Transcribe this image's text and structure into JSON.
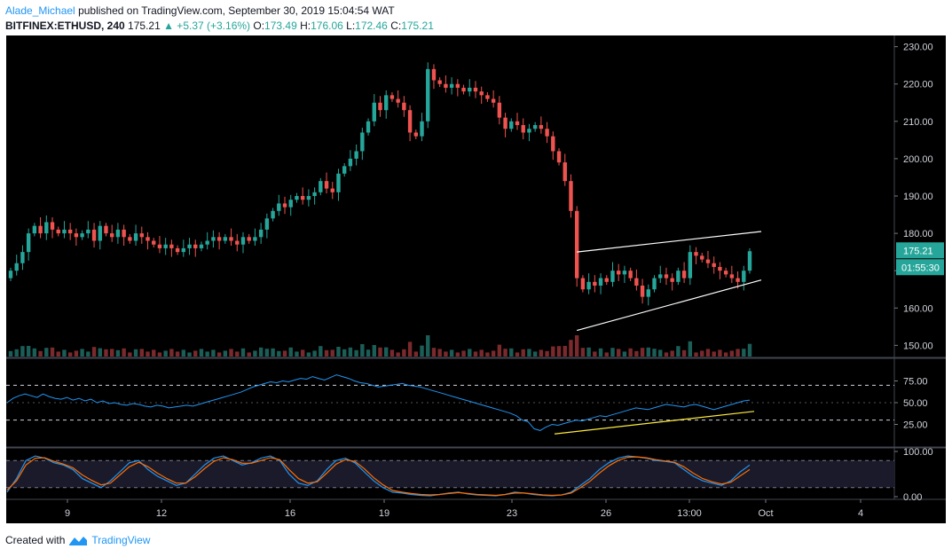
{
  "header": {
    "author": "Alade_Michael",
    "published_text": "published on TradingView.com, September 30, 2019 15:04:54 WAT",
    "symbol": "BITFINEX:ETHUSD, 240",
    "last": "175.21",
    "change": "▲ +5.37 (+3.16%)",
    "o_label": "O:",
    "o_value": "173.49",
    "h_label": "H:",
    "h_value": "176.06",
    "l_label": "L:",
    "l_value": "172.46",
    "c_label": "C:",
    "c_value": "175.21"
  },
  "price_badge": "175.21",
  "timer_badge": "01:55:30",
  "footer": {
    "created_with": "Created with",
    "brand": "TradingView"
  },
  "colors": {
    "up": "#26a69a",
    "down": "#ef5350",
    "rsi": "#2196f3",
    "stoch_k": "#2196f3",
    "stoch_d": "#ff6d00",
    "trend": "#ffffff",
    "rsi_trend": "#ffeb3b"
  },
  "chart_data": [
    {
      "type": "candlestick",
      "yticks": [
        "230.00",
        "220.00",
        "210.00",
        "200.00",
        "190.00",
        "180.00",
        "170.00",
        "160.00",
        "150.00"
      ],
      "ylim": [
        147,
        233
      ],
      "xticks": [
        "9",
        "12",
        "16",
        "19",
        "23",
        "26",
        "13:00",
        "Oct",
        "4"
      ],
      "closes": [
        170,
        172,
        175,
        180,
        182,
        180,
        183,
        181,
        180,
        181,
        180,
        179,
        180,
        181,
        178,
        182,
        180,
        179,
        181,
        179,
        178,
        180,
        179,
        178,
        177,
        176,
        177,
        176,
        175,
        176,
        177,
        176,
        177,
        178,
        179,
        178,
        179,
        178,
        177,
        179,
        178,
        179,
        181,
        184,
        186,
        188,
        187,
        189,
        190,
        189,
        190,
        191,
        194,
        192,
        191,
        196,
        198,
        200,
        202,
        207,
        210,
        215,
        213,
        217,
        216,
        215,
        213,
        207,
        206,
        210,
        224,
        221,
        220,
        219,
        220,
        219,
        218,
        219,
        218,
        217,
        216,
        215,
        211,
        208,
        210,
        209,
        207,
        208,
        209,
        208,
        206,
        202,
        199,
        194,
        186,
        168,
        165,
        167,
        166,
        168,
        167,
        170,
        169,
        170,
        168,
        166,
        163,
        165,
        168,
        169,
        168,
        167,
        170,
        168,
        175,
        174,
        173,
        172,
        171,
        170,
        169,
        168,
        167,
        170,
        175.21
      ],
      "trend_lines": [
        {
          "from": [
            0,
            175
          ],
          "to": [
            1,
            180.5
          ]
        },
        {
          "from": [
            0,
            154
          ],
          "to": [
            1,
            167.5
          ]
        }
      ]
    },
    {
      "type": "line",
      "name": "RSI",
      "yticks": [
        "75.00",
        "50.00",
        "25.00"
      ],
      "ylim": [
        0,
        100
      ],
      "levels": [
        70,
        30
      ],
      "values": [
        50,
        55,
        58,
        60,
        58,
        56,
        60,
        57,
        55,
        54,
        56,
        53,
        55,
        52,
        54,
        50,
        52,
        49,
        50,
        48,
        47,
        49,
        48,
        46,
        45,
        47,
        46,
        44,
        45,
        46,
        47,
        46,
        48,
        50,
        52,
        54,
        56,
        58,
        60,
        62,
        65,
        68,
        70,
        72,
        74,
        73,
        75,
        74,
        76,
        78,
        77,
        80,
        78,
        76,
        79,
        82,
        80,
        78,
        75,
        73,
        72,
        70,
        68,
        69,
        70,
        71,
        72,
        70,
        69,
        68,
        66,
        64,
        62,
        60,
        58,
        56,
        54,
        52,
        50,
        48,
        46,
        44,
        42,
        40,
        38,
        35,
        30,
        28,
        20,
        18,
        22,
        25,
        24,
        26,
        28,
        30,
        29,
        31,
        33,
        35,
        34,
        36,
        38,
        40,
        42,
        44,
        43,
        42,
        44,
        46,
        48,
        47,
        46,
        45,
        47,
        48,
        46,
        44,
        42,
        44,
        46,
        48,
        50,
        52,
        53
      ],
      "trend_line": {
        "from": [
          0,
          14
        ],
        "to": [
          1,
          40
        ]
      }
    },
    {
      "type": "line",
      "name": "Stoch",
      "yticks": [
        "100.00",
        "0.00"
      ],
      "ylim": [
        0,
        100
      ],
      "levels": [
        80,
        20
      ],
      "series": [
        {
          "values": [
            10,
            40,
            80,
            90,
            85,
            75,
            70,
            60,
            40,
            30,
            20,
            35,
            55,
            75,
            80,
            60,
            45,
            35,
            25,
            30,
            50,
            70,
            85,
            90,
            80,
            70,
            75,
            85,
            90,
            80,
            50,
            30,
            25,
            35,
            60,
            80,
            85,
            75,
            55,
            35,
            20,
            10,
            8,
            5,
            3,
            2,
            5,
            8,
            10,
            6,
            4,
            3,
            2,
            5,
            10,
            8,
            5,
            3,
            2,
            4,
            10,
            25,
            40,
            60,
            75,
            85,
            90,
            88,
            85,
            80,
            78,
            75,
            60,
            45,
            35,
            30,
            25,
            35,
            55,
            70
          ]
        },
        {
          "values": [
            15,
            35,
            70,
            85,
            86,
            78,
            72,
            64,
            48,
            36,
            26,
            30,
            48,
            66,
            76,
            66,
            52,
            40,
            30,
            30,
            44,
            62,
            78,
            86,
            82,
            74,
            74,
            80,
            86,
            82,
            60,
            40,
            30,
            33,
            52,
            72,
            82,
            78,
            62,
            42,
            26,
            14,
            10,
            7,
            5,
            4,
            5,
            7,
            9,
            7,
            5,
            4,
            3,
            5,
            8,
            8,
            6,
            4,
            3,
            4,
            8,
            20,
            34,
            52,
            68,
            80,
            87,
            88,
            86,
            82,
            79,
            76,
            66,
            52,
            40,
            33,
            28,
            32,
            46,
            60
          ]
        }
      ]
    }
  ]
}
